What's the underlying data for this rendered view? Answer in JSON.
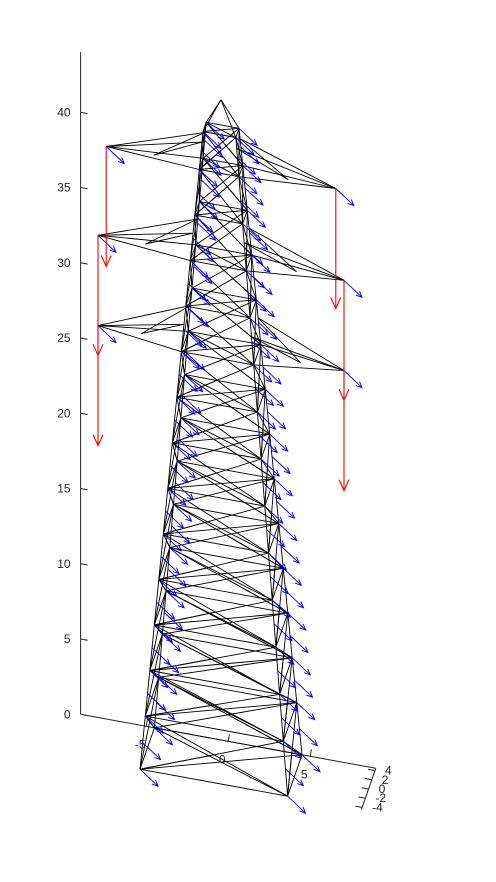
{
  "chart_data": {
    "type": "3d-wireframe-with-vector-field",
    "title": "",
    "xlabel": "",
    "ylabel": "",
    "zlabel": "",
    "xlim": [
      -9,
      9
    ],
    "ylim": [
      -4.5,
      4.5
    ],
    "zlim": [
      0,
      44
    ],
    "x_ticks": [
      -5,
      0,
      5
    ],
    "y_ticks": [
      -4,
      -2,
      0,
      2,
      4
    ],
    "z_ticks": [
      0,
      5,
      10,
      15,
      20,
      25,
      30,
      35,
      40
    ],
    "x_tick_labels": [
      "-5",
      "0",
      "5"
    ],
    "y_tick_labels": [
      "-4",
      "-2",
      "0",
      "2",
      "4"
    ],
    "z_tick_labels": [
      "0",
      "5",
      "10",
      "15",
      "20",
      "25",
      "30",
      "35",
      "40"
    ],
    "structure": {
      "base_half_width": 4.5,
      "top_half_width": 1.0,
      "levels_z": [
        0,
        3.5,
        6.5,
        9.5,
        12.5,
        15.5,
        18.5,
        21.5,
        24.5,
        27.5,
        30.5,
        33.5,
        36.5,
        39.5,
        42,
        44
      ],
      "cross_arm_left": [
        {
          "z": 27.5,
          "tip_x": -7.5
        },
        {
          "z": 33.5,
          "tip_x": -7.5
        },
        {
          "z": 39.5,
          "tip_x": -7.0
        }
      ],
      "cross_arm_right": [
        {
          "z": 27.5,
          "tip_x": 7.5
        },
        {
          "z": 33.5,
          "tip_x": 7.5
        },
        {
          "z": 39.5,
          "tip_x": 7.0
        }
      ],
      "peak_z": 44
    },
    "series": [
      {
        "color": "#0000ff"
      },
      {
        "color": "#ff0000"
      }
    ]
  }
}
